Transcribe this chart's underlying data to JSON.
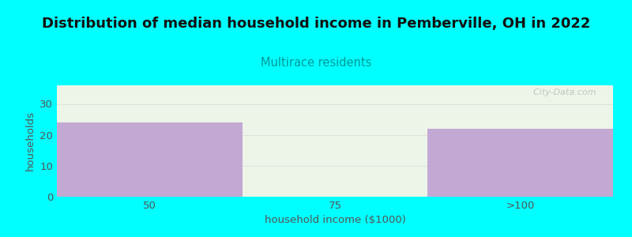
{
  "title": "Distribution of median household income in Pemberville, OH in 2022",
  "subtitle": "Multirace residents",
  "xlabel": "household income ($1000)",
  "ylabel": "households",
  "categories": [
    "50",
    "75",
    ">100"
  ],
  "values": [
    24,
    0,
    22
  ],
  "bar_color": "#C4A8D4",
  "plot_bg_color": "#EDF5E8",
  "fig_bg_color": "#00FFFF",
  "title_color": "#111111",
  "subtitle_color": "#009999",
  "axis_label_color": "#555555",
  "tick_color": "#555555",
  "grid_color": "#DDDDDD",
  "ylim": [
    0,
    36
  ],
  "yticks": [
    0,
    10,
    20,
    30
  ],
  "watermark": "  City-Data.com",
  "title_fontsize": 13,
  "subtitle_fontsize": 10.5,
  "label_fontsize": 9.5,
  "tick_fontsize": 9.5
}
